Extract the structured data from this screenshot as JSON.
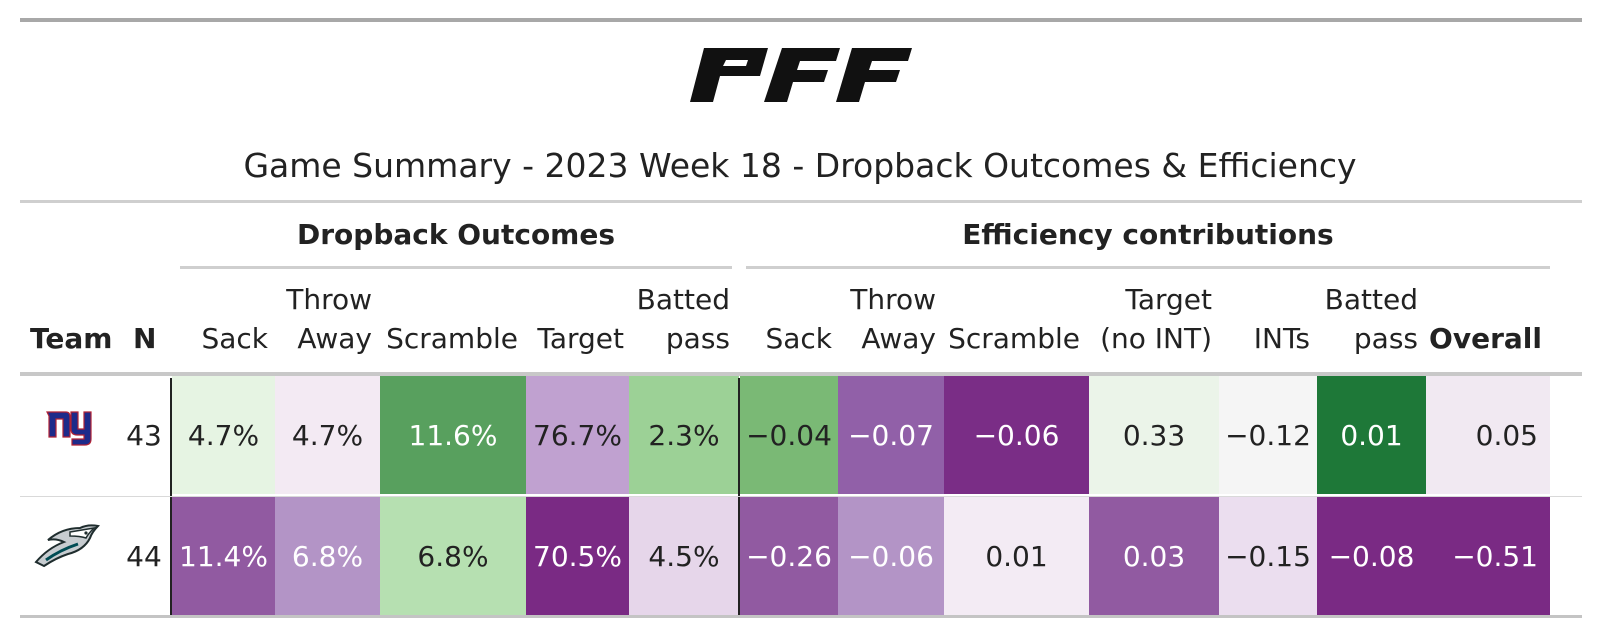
{
  "brand": "PFF",
  "title": "Game Summary - 2023 Week 18 - Dropback Outcomes & Efficiency",
  "groups": {
    "outcomes": "Dropback Outcomes",
    "efficiency": "Efficiency contributions"
  },
  "columns": {
    "team": "Team",
    "n": "N",
    "o_sack": "Sack",
    "o_throw_1": "Throw",
    "o_throw_2": "Away",
    "o_scramble": "Scramble",
    "o_target": "Target",
    "o_batted_1": "Batted",
    "o_batted_2": "pass",
    "e_sack": "Sack",
    "e_throw_1": "Throw",
    "e_throw_2": "Away",
    "e_scramble": "Scramble",
    "e_target_1": "Target",
    "e_target_2": "(no INT)",
    "e_ints": "INTs",
    "e_batted_1": "Batted",
    "e_batted_2": "pass",
    "e_overall": "Overall"
  },
  "rows": [
    {
      "team_icon": "giants-logo",
      "team_text": "ny",
      "n": "43",
      "cells": [
        {
          "v": "4.7%",
          "bg": "#e6f4e3",
          "fg": "#222222"
        },
        {
          "v": "4.7%",
          "bg": "#f3eaf3",
          "fg": "#222222"
        },
        {
          "v": "11.6%",
          "bg": "#58a05e",
          "fg": "#ffffff"
        },
        {
          "v": "76.7%",
          "bg": "#c0a1d0",
          "fg": "#222222"
        },
        {
          "v": "2.3%",
          "bg": "#9cd196",
          "fg": "#222222"
        },
        {
          "v": "−0.04",
          "bg": "#7ab975",
          "fg": "#222222"
        },
        {
          "v": "−0.07",
          "bg": "#9160a8",
          "fg": "#ffffff"
        },
        {
          "v": "−0.06",
          "bg": "#7a2d86",
          "fg": "#ffffff"
        },
        {
          "v": "0.33",
          "bg": "#ebf4e9",
          "fg": "#222222"
        },
        {
          "v": "−0.12",
          "bg": "#f5f5f5",
          "fg": "#222222"
        },
        {
          "v": "0.01",
          "bg": "#1e7838",
          "fg": "#ffffff"
        },
        {
          "v": "0.05",
          "bg": "#f1e9f2",
          "fg": "#222222"
        }
      ]
    },
    {
      "team_icon": "eagles-logo",
      "team_text": "",
      "n": "44",
      "cells": [
        {
          "v": "11.4%",
          "bg": "#915aa1",
          "fg": "#ffffff"
        },
        {
          "v": "6.8%",
          "bg": "#b394c6",
          "fg": "#ffffff"
        },
        {
          "v": "6.8%",
          "bg": "#b6e0b1",
          "fg": "#222222"
        },
        {
          "v": "70.5%",
          "bg": "#7a2a84",
          "fg": "#ffffff"
        },
        {
          "v": "4.5%",
          "bg": "#e6d6ea",
          "fg": "#222222"
        },
        {
          "v": "−0.26",
          "bg": "#915aa1",
          "fg": "#ffffff"
        },
        {
          "v": "−0.06",
          "bg": "#b394c6",
          "fg": "#ffffff"
        },
        {
          "v": "0.01",
          "bg": "#f3ebf4",
          "fg": "#222222"
        },
        {
          "v": "0.03",
          "bg": "#915aa1",
          "fg": "#ffffff"
        },
        {
          "v": "−0.15",
          "bg": "#ebdeef",
          "fg": "#222222"
        },
        {
          "v": "−0.08",
          "bg": "#7a2a84",
          "fg": "#ffffff"
        },
        {
          "v": "−0.51",
          "bg": "#7a2a84",
          "fg": "#ffffff"
        }
      ]
    }
  ]
}
